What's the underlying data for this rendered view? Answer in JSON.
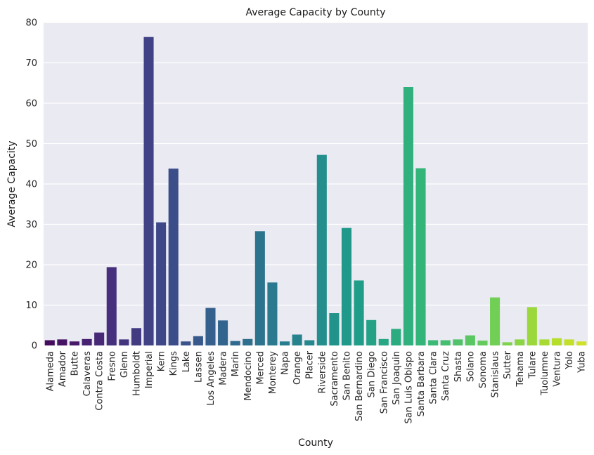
{
  "chart_data": {
    "type": "bar",
    "title": "Average Capacity by County",
    "xlabel": "County",
    "ylabel": "Average Capacity",
    "ylim": [
      0,
      80
    ],
    "yticks": [
      0,
      10,
      20,
      30,
      40,
      50,
      60,
      70,
      80
    ],
    "grid": true,
    "palette": "viridis",
    "categories": [
      "Alameda",
      "Amador",
      "Butte",
      "Calaveras",
      "Contra Costa",
      "Fresno",
      "Glenn",
      "Humboldt",
      "Imperial",
      "Kern",
      "Kings",
      "Lake",
      "Lassen",
      "Los Angeles",
      "Madera",
      "Marin",
      "Mendocino",
      "Merced",
      "Monterey",
      "Napa",
      "Orange",
      "Placer",
      "Riverside",
      "Sacramento",
      "San Benito",
      "San Bernardino",
      "San Diego",
      "San Francisco",
      "San Joaquin",
      "San Luis Obispo",
      "Santa Barbara",
      "Santa Clara",
      "Santa Cruz",
      "Shasta",
      "Solano",
      "Sonoma",
      "Stanislaus",
      "Sutter",
      "Tehama",
      "Tulare",
      "Tuolumne",
      "Ventura",
      "Yolo",
      "Yuba"
    ],
    "values": [
      1.3,
      1.5,
      1.0,
      1.6,
      3.2,
      19.4,
      1.5,
      4.3,
      76.4,
      30.5,
      43.8,
      1.0,
      2.3,
      9.3,
      6.2,
      1.1,
      1.6,
      28.3,
      15.6,
      1.0,
      2.7,
      1.3,
      47.2,
      8.0,
      29.1,
      16.1,
      6.3,
      1.6,
      4.1,
      64.0,
      43.9,
      1.3,
      1.3,
      1.5,
      2.5,
      1.2,
      11.9,
      0.8,
      1.5,
      9.5,
      1.5,
      1.8,
      1.5,
      1.0
    ]
  }
}
